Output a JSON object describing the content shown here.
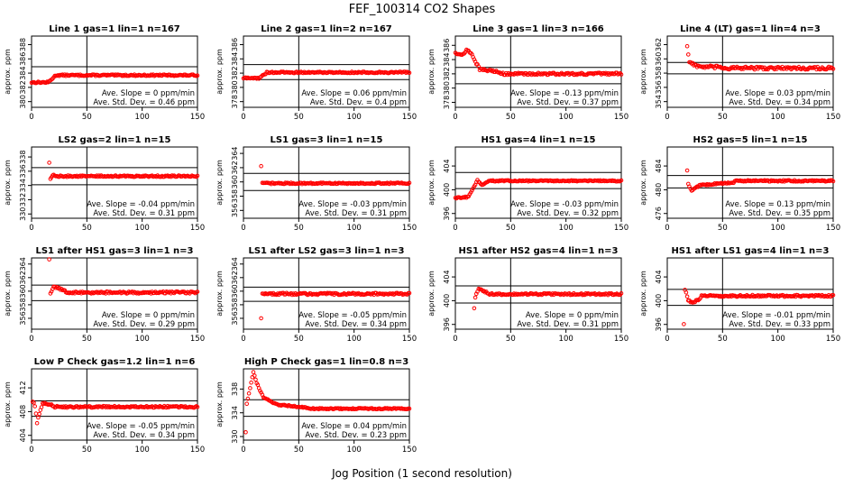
{
  "title": "FEF_100314  CO2 Shapes",
  "xlabel": "Jog Position (1 second resolution)",
  "style": {
    "point_color": "#ff0000",
    "line_color": "#000000"
  },
  "chart_data": [
    {
      "type": "scatter",
      "title": "Line 1 gas=1 lin=1 n=167",
      "ylabel": "approx. ppm",
      "xlim": [
        0,
        150
      ],
      "ylim": [
        379.2,
        389.2
      ],
      "xticks": [
        0,
        50,
        100,
        150
      ],
      "yticks": [
        380,
        382,
        384,
        386,
        388
      ],
      "hlines": [
        384.9,
        382.6
      ],
      "vline": 50,
      "annotations": [
        "Ave. Slope = 0  ppm/min",
        "Ave. Std. Dev. = 0.46  ppm"
      ],
      "profile": {
        "pre": [
          [
            0,
            382.7
          ],
          [
            15,
            382.7
          ],
          [
            22,
            383.7
          ]
        ],
        "base": 383.7,
        "noise": 0.1,
        "start": 0
      }
    },
    {
      "type": "scatter",
      "title": "Line 2 gas=1 lin=2 n=167",
      "ylabel": "approx. ppm",
      "xlim": [
        0,
        150
      ],
      "ylim": [
        377.2,
        387.2
      ],
      "xticks": [
        0,
        50,
        100,
        150
      ],
      "yticks": [
        378,
        380,
        382,
        384,
        386
      ],
      "hlines": [
        383.2,
        381.1
      ],
      "vline": 50,
      "annotations": [
        "Ave. Slope = 0.06  ppm/min",
        "Ave. Std. Dev. = 0.4  ppm"
      ],
      "profile": {
        "pre": [
          [
            0,
            381.3
          ],
          [
            14,
            381.3
          ],
          [
            20,
            381.9
          ]
        ],
        "base": 382.1,
        "noise": 0.1,
        "start": 0
      }
    },
    {
      "type": "scatter",
      "title": "Line 3 gas=1 lin=3 n=166",
      "ylabel": "approx. ppm",
      "xlim": [
        0,
        150
      ],
      "ylim": [
        377.3,
        387.3
      ],
      "xticks": [
        0,
        50,
        100,
        150
      ],
      "yticks": [
        378,
        380,
        382,
        384,
        386
      ],
      "hlines": [
        382.9,
        380.6
      ],
      "vline": 50,
      "annotations": [
        "Ave. Slope = -0.13  ppm/min",
        "Ave. Std. Dev. = 0.37  ppm"
      ],
      "profile": {
        "pre": [
          [
            0,
            385.0
          ],
          [
            6,
            384.6
          ],
          [
            10,
            385.3
          ],
          [
            14,
            385.0
          ],
          [
            22,
            382.6
          ],
          [
            40,
            382.3
          ]
        ],
        "base": 382.0,
        "noise": 0.15,
        "start": 0
      }
    },
    {
      "type": "scatter",
      "title": "Line 4 (LT) gas=1 lin=4 n=3",
      "ylabel": "approx. ppm",
      "xlim": [
        0,
        150
      ],
      "ylim": [
        353.2,
        363.2
      ],
      "xticks": [
        0,
        50,
        100,
        150
      ],
      "yticks": [
        354,
        356,
        358,
        360,
        362
      ],
      "hlines": [
        359.5,
        357.9
      ],
      "vline": 50,
      "annotations": [
        "Ave. Slope = 0.03  ppm/min",
        "Ave. Std. Dev. = 0.34  ppm"
      ],
      "profile": {
        "pre": [
          [
            18,
            361.8
          ],
          [
            20,
            359.6
          ],
          [
            28,
            358.9
          ],
          [
            50,
            358.8
          ]
        ],
        "base": 358.7,
        "noise": 0.2,
        "start": 18
      }
    },
    {
      "type": "scatter",
      "title": "LS2 gas=2 lin=1 n=15",
      "ylabel": "approx. ppm",
      "xlim": [
        0,
        150
      ],
      "ylim": [
        329.4,
        339.4
      ],
      "xticks": [
        0,
        50,
        100,
        150
      ],
      "yticks": [
        330,
        332,
        334,
        336,
        338
      ],
      "hlines": [
        336.5,
        334.1
      ],
      "vline": 50,
      "annotations": [
        "Ave. Slope = -0.04  ppm/min",
        "Ave. Std. Dev. = 0.31  ppm"
      ],
      "profile": {
        "pre": [
          [
            16,
            337.2
          ],
          [
            17,
            334.9
          ],
          [
            20,
            335.6
          ]
        ],
        "base": 335.3,
        "noise": 0.1,
        "start": 16
      }
    },
    {
      "type": "scatter",
      "title": "LS1 gas=3 lin=1 n=15",
      "ylabel": "approx. ppm",
      "xlim": [
        0,
        150
      ],
      "ylim": [
        354.9,
        364.9
      ],
      "xticks": [
        0,
        50,
        100,
        150
      ],
      "yticks": [
        356,
        358,
        360,
        362,
        364
      ],
      "hlines": [
        361.2,
        358.8
      ],
      "vline": 50,
      "annotations": [
        "Ave. Slope = -0.03  ppm/min",
        "Ave. Std. Dev. = 0.31  ppm"
      ],
      "profile": {
        "pre": [
          [
            16,
            362.2
          ],
          [
            17,
            359.8
          ]
        ],
        "base": 359.8,
        "noise": 0.1,
        "start": 16
      }
    },
    {
      "type": "scatter",
      "title": "HS1 gas=4 lin=1 n=15",
      "ylabel": "approx. ppm",
      "xlim": [
        0,
        150
      ],
      "ylim": [
        395.2,
        407.2
      ],
      "xticks": [
        0,
        50,
        100,
        150
      ],
      "yticks": [
        396,
        400,
        404
      ],
      "hlines": [
        402.9,
        400.2
      ],
      "vline": 50,
      "annotations": [
        "Ave. Slope = -0.03  ppm/min",
        "Ave. Std. Dev. = 0.32  ppm"
      ],
      "profile": {
        "pre": [
          [
            0,
            398.6
          ],
          [
            12,
            398.8
          ],
          [
            20,
            401.6
          ],
          [
            24,
            400.8
          ],
          [
            30,
            401.5
          ]
        ],
        "base": 401.5,
        "noise": 0.1,
        "start": 0
      }
    },
    {
      "type": "scatter",
      "title": "HS2 gas=5 lin=1 n=15",
      "ylabel": "approx. ppm",
      "xlim": [
        0,
        150
      ],
      "ylim": [
        475.2,
        487.2
      ],
      "xticks": [
        0,
        50,
        100,
        150
      ],
      "yticks": [
        476,
        480,
        484
      ],
      "hlines": [
        482.4,
        480.3
      ],
      "vline": 50,
      "annotations": [
        "Ave. Slope = 0.13  ppm/min",
        "Ave. Std. Dev. = 0.35  ppm"
      ],
      "profile": {
        "pre": [
          [
            18,
            483.2
          ],
          [
            19,
            481.0
          ],
          [
            22,
            479.9
          ],
          [
            30,
            480.8
          ],
          [
            60,
            481.2
          ]
        ],
        "base": 481.5,
        "noise": 0.12,
        "start": 18
      }
    },
    {
      "type": "scatter",
      "title": "LS1 after HS1 gas=3 lin=1 n=3",
      "ylabel": "approx. ppm",
      "xlim": [
        0,
        150
      ],
      "ylim": [
        354.4,
        364.9
      ],
      "xticks": [
        0,
        50,
        100,
        150
      ],
      "yticks": [
        356,
        358,
        360,
        362,
        364
      ],
      "hlines": [
        360.9,
        358.6
      ],
      "vline": 50,
      "annotations": [
        "Ave. Slope = 0  ppm/min",
        "Ave. Std. Dev. = 0.29  ppm"
      ],
      "profile": {
        "pre": [
          [
            16,
            364.6
          ],
          [
            17,
            359.6
          ],
          [
            20,
            360.8
          ],
          [
            30,
            360.0
          ]
        ],
        "base": 359.8,
        "noise": 0.15,
        "start": 16
      }
    },
    {
      "type": "scatter",
      "title": "LS1 after LS2 gas=3 lin=1 n=3",
      "ylabel": "approx. ppm",
      "xlim": [
        0,
        150
      ],
      "ylim": [
        354.4,
        364.9
      ],
      "xticks": [
        0,
        50,
        100,
        150
      ],
      "yticks": [
        356,
        358,
        360,
        362,
        364
      ],
      "hlines": [
        360.6,
        358.5
      ],
      "vline": 50,
      "annotations": [
        "Ave. Slope = -0.05  ppm/min",
        "Ave. Std. Dev. = 0.34  ppm"
      ],
      "profile": {
        "pre": [
          [
            16,
            355.9
          ],
          [
            17,
            359.8
          ]
        ],
        "base": 359.6,
        "noise": 0.15,
        "start": 16
      }
    },
    {
      "type": "scatter",
      "title": "HS1 after HS2 gas=4 lin=1 n=3",
      "ylabel": "approx. ppm",
      "xlim": [
        0,
        150
      ],
      "ylim": [
        395.2,
        407.2
      ],
      "xticks": [
        0,
        50,
        100,
        150
      ],
      "yticks": [
        396,
        400,
        404
      ],
      "hlines": [
        402.5,
        399.6
      ],
      "vline": 50,
      "annotations": [
        "Ave. Slope = 0  ppm/min",
        "Ave. Std. Dev. = 0.31  ppm"
      ],
      "profile": {
        "pre": [
          [
            17,
            398.6
          ],
          [
            18,
            400.6
          ],
          [
            21,
            402.0
          ],
          [
            28,
            401.4
          ]
        ],
        "base": 401.1,
        "noise": 0.15,
        "start": 17
      }
    },
    {
      "type": "scatter",
      "title": "HS1 after LS1 gas=4 lin=1 n=3",
      "ylabel": "approx. ppm",
      "xlim": [
        0,
        150
      ],
      "ylim": [
        395.2,
        407.2
      ],
      "xticks": [
        0,
        50,
        100,
        150
      ],
      "yticks": [
        396,
        400,
        404
      ],
      "hlines": [
        401.9,
        399.2
      ],
      "vline": 50,
      "annotations": [
        "Ave. Slope = -0.01  ppm/min",
        "Ave. Std. Dev. = 0.33  ppm"
      ],
      "profile": {
        "pre": [
          [
            15,
            396.2
          ],
          [
            16,
            401.8
          ],
          [
            19,
            400.1
          ],
          [
            23,
            399.6
          ],
          [
            30,
            400.4
          ]
        ],
        "base": 400.8,
        "noise": 0.15,
        "start": 15
      }
    },
    {
      "type": "scatter",
      "title": "Low P Check gas=1.2 lin=1 n=6",
      "ylabel": "approx. ppm",
      "xlim": [
        0,
        150
      ],
      "ylim": [
        403.2,
        415.2
      ],
      "xticks": [
        0,
        50,
        100,
        150
      ],
      "yticks": [
        404,
        408,
        412
      ],
      "hlines": [
        409.8,
        407.2
      ],
      "vline": 50,
      "annotations": [
        "Ave. Slope = -0.05  ppm/min",
        "Ave. Std. Dev. = 0.34  ppm"
      ],
      "profile": {
        "pre": [
          [
            1,
            409.8
          ],
          [
            3,
            409.0
          ],
          [
            5,
            406.2
          ],
          [
            7,
            407.6
          ],
          [
            10,
            409.4
          ],
          [
            20,
            409.0
          ]
        ],
        "base": 408.8,
        "noise": 0.15,
        "start": 1
      }
    },
    {
      "type": "scatter",
      "title": "High P Check gas=1 lin=0.8 n=3",
      "ylabel": "approx. ppm",
      "xlim": [
        0,
        150
      ],
      "ylim": [
        329.4,
        341.4
      ],
      "xticks": [
        0,
        50,
        100,
        150
      ],
      "yticks": [
        330,
        334,
        338
      ],
      "hlines": [
        336.2,
        333.4
      ],
      "vline": 50,
      "annotations": [
        "Ave. Slope = 0.04  ppm/min",
        "Ave. Std. Dev. = 0.23  ppm"
      ],
      "profile": {
        "pre": [
          [
            2,
            330.8
          ],
          [
            3,
            335.6
          ],
          [
            5,
            337.2
          ],
          [
            9,
            340.8
          ],
          [
            12,
            339.0
          ],
          [
            18,
            336.6
          ],
          [
            30,
            335.4
          ],
          [
            60,
            334.8
          ]
        ],
        "base": 334.7,
        "noise": 0.1,
        "start": 2
      }
    }
  ]
}
